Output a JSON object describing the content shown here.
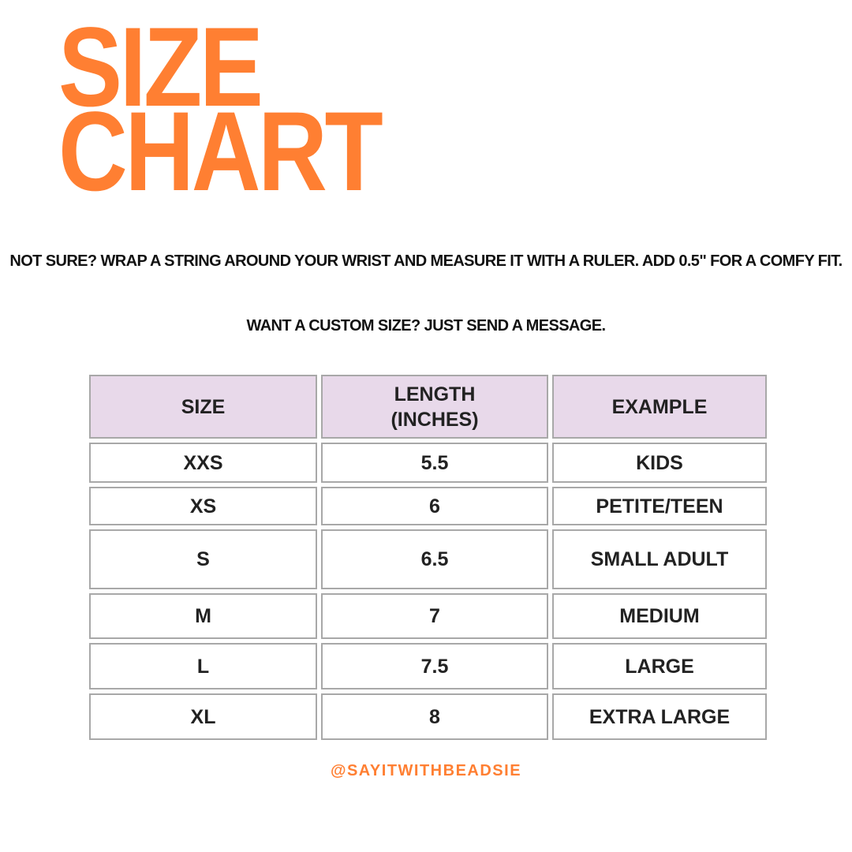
{
  "title": {
    "line1": "SIZE",
    "line2": "CHART"
  },
  "notes": {
    "measure": "NOT SURE?  WRAP A STRING AROUND YOUR WRIST AND MEASURE IT WITH A RULER. ADD 0.5\" FOR A COMFY FIT.",
    "custom": "WANT A CUSTOM SIZE? JUST SEND A MESSAGE."
  },
  "table": {
    "headers": [
      "SIZE",
      "LENGTH (INCHES)",
      "EXAMPLE"
    ],
    "rows": [
      [
        "XXS",
        "5.5",
        "KIDS"
      ],
      [
        "XS",
        "6",
        "PETITE/TEEN"
      ],
      [
        "S",
        "6.5",
        "SMALL ADULT"
      ],
      [
        "M",
        "7",
        "MEDIUM"
      ],
      [
        "L",
        "7.5",
        "LARGE"
      ],
      [
        "XL",
        "8",
        "EXTRA LARGE"
      ]
    ]
  },
  "handle": "@SAYITWITHBEADSIE",
  "colors": {
    "accent": "#ff7f32",
    "header_bg": "#e8d9ea",
    "border": "#a8a8a8"
  }
}
